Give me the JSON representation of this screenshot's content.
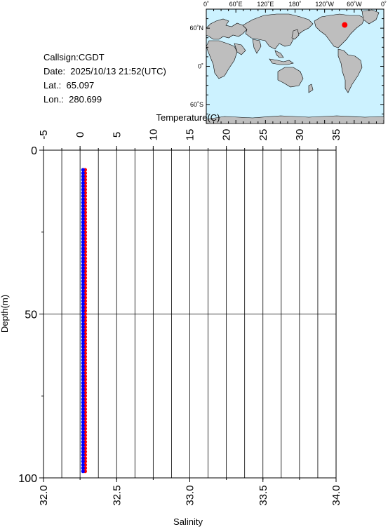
{
  "station": {
    "callsign": "Callsign:CGDT",
    "date": "Date:  2025/10/13 21:52(UTC)",
    "lat": "Lat.:  65.097",
    "lon": "Lon.:  280.699"
  },
  "map": {
    "lon_ticks": [
      "0˚",
      "60˚E",
      "120˚E",
      "180˚",
      "120˚W",
      "60˚W",
      "0˚"
    ],
    "lat_ticks": [
      "60˚N",
      "0˚",
      "60˚S"
    ],
    "ocean_color": "#ccf2ff",
    "land_color": "#bebebe",
    "marker_color": "#ff0000",
    "marker_lat": 65.097,
    "marker_lon": 280.699
  },
  "chart_data": {
    "type": "scatter",
    "temperature_axis": {
      "label": "Temperature(C)",
      "ticks": [
        "-5",
        "0",
        "5",
        "10",
        "15",
        "20",
        "25",
        "30",
        "35"
      ],
      "range": [
        -5,
        35
      ]
    },
    "salinity_axis": {
      "label": "Salinity",
      "ticks": [
        "32.0",
        "32.5",
        "33.0",
        "33.5",
        "34.0"
      ],
      "range": [
        32.0,
        34.0
      ]
    },
    "depth_axis": {
      "label": "Depth(m)",
      "ticks": [
        "0",
        "50",
        "100"
      ],
      "range": [
        0,
        100
      ],
      "inverted": true
    },
    "grid": true,
    "series": [
      {
        "quantity": "temperature",
        "color": "#ff0000",
        "value": 0.7,
        "depth_start": 6,
        "depth_end": 98,
        "depth_step": 1
      },
      {
        "quantity": "salinity",
        "color": "#0000ff",
        "value": 32.27,
        "depth_start": 6,
        "depth_end": 98,
        "depth_step": 1
      }
    ]
  }
}
